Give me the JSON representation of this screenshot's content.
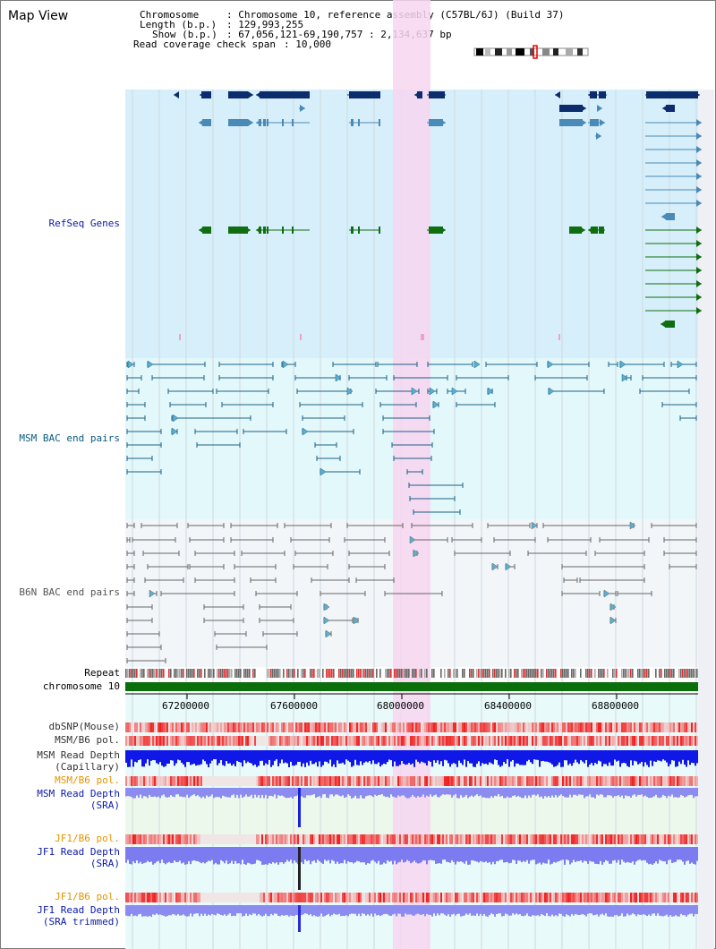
{
  "title": "Map View",
  "info": {
    "chromosome_label": "Chromosome",
    "chromosome_value": "Chromosome 10, reference assembly (C57BL/6J) (Build 37)",
    "length_label": "Length (b.p.)",
    "length_value": "129,993,255",
    "show_label": "Show (b.p.)",
    "show_value": "67,056,121-69,190,757 : 2,134,637 bp",
    "span_label": "Read coverage check span",
    "span_value": "10,000"
  },
  "tracks": {
    "refseq": "RefSeq Genes",
    "msm_bac": "MSM BAC end pairs",
    "b6n_bac": "B6N BAC end pairs",
    "repeat": "Repeat",
    "chromosome": "chromosome 10",
    "dbsnp": "dbSNP(Mouse)",
    "msm_b6_pol": "MSM/B6 pol.",
    "msm_depth_cap_1": "MSM Read Depth",
    "msm_depth_cap_2": "(Capillary)",
    "msm_b6_pol_2": "MSM/B6 pol.",
    "msm_depth_sra_1": "MSM Read Depth",
    "msm_depth_sra_2": "(SRA)",
    "jf1_pol_1": "JF1/B6 pol.",
    "jf1_depth_sra_1": "JF1 Read Depth",
    "jf1_depth_sra_2": "(SRA)",
    "jf1_pol_2": "JF1/B6 pol.",
    "jf1_depth_trim_1": "JF1 Read Depth",
    "jf1_depth_trim_2": "(SRA trimmed)"
  },
  "axis": {
    "ticks": [
      "67200000",
      "67600000",
      "68000000",
      "68400000",
      "68800000"
    ]
  },
  "colors": {
    "refseq_bg": "#d6effa",
    "msm_bg": "#e3f8fb",
    "b6n_bg": "#f2f6f9",
    "highlight": "#f7d6f0",
    "navy": "#0d2c6e",
    "steel": "#4a8ab6",
    "green": "#106e10",
    "teal": "#1c5f86",
    "gray": "#666666",
    "chrom": "#0a6e0a",
    "label_blue": "#0a1aa8",
    "label_orange": "#e39400",
    "label_teal": "#0a5a80"
  }
}
